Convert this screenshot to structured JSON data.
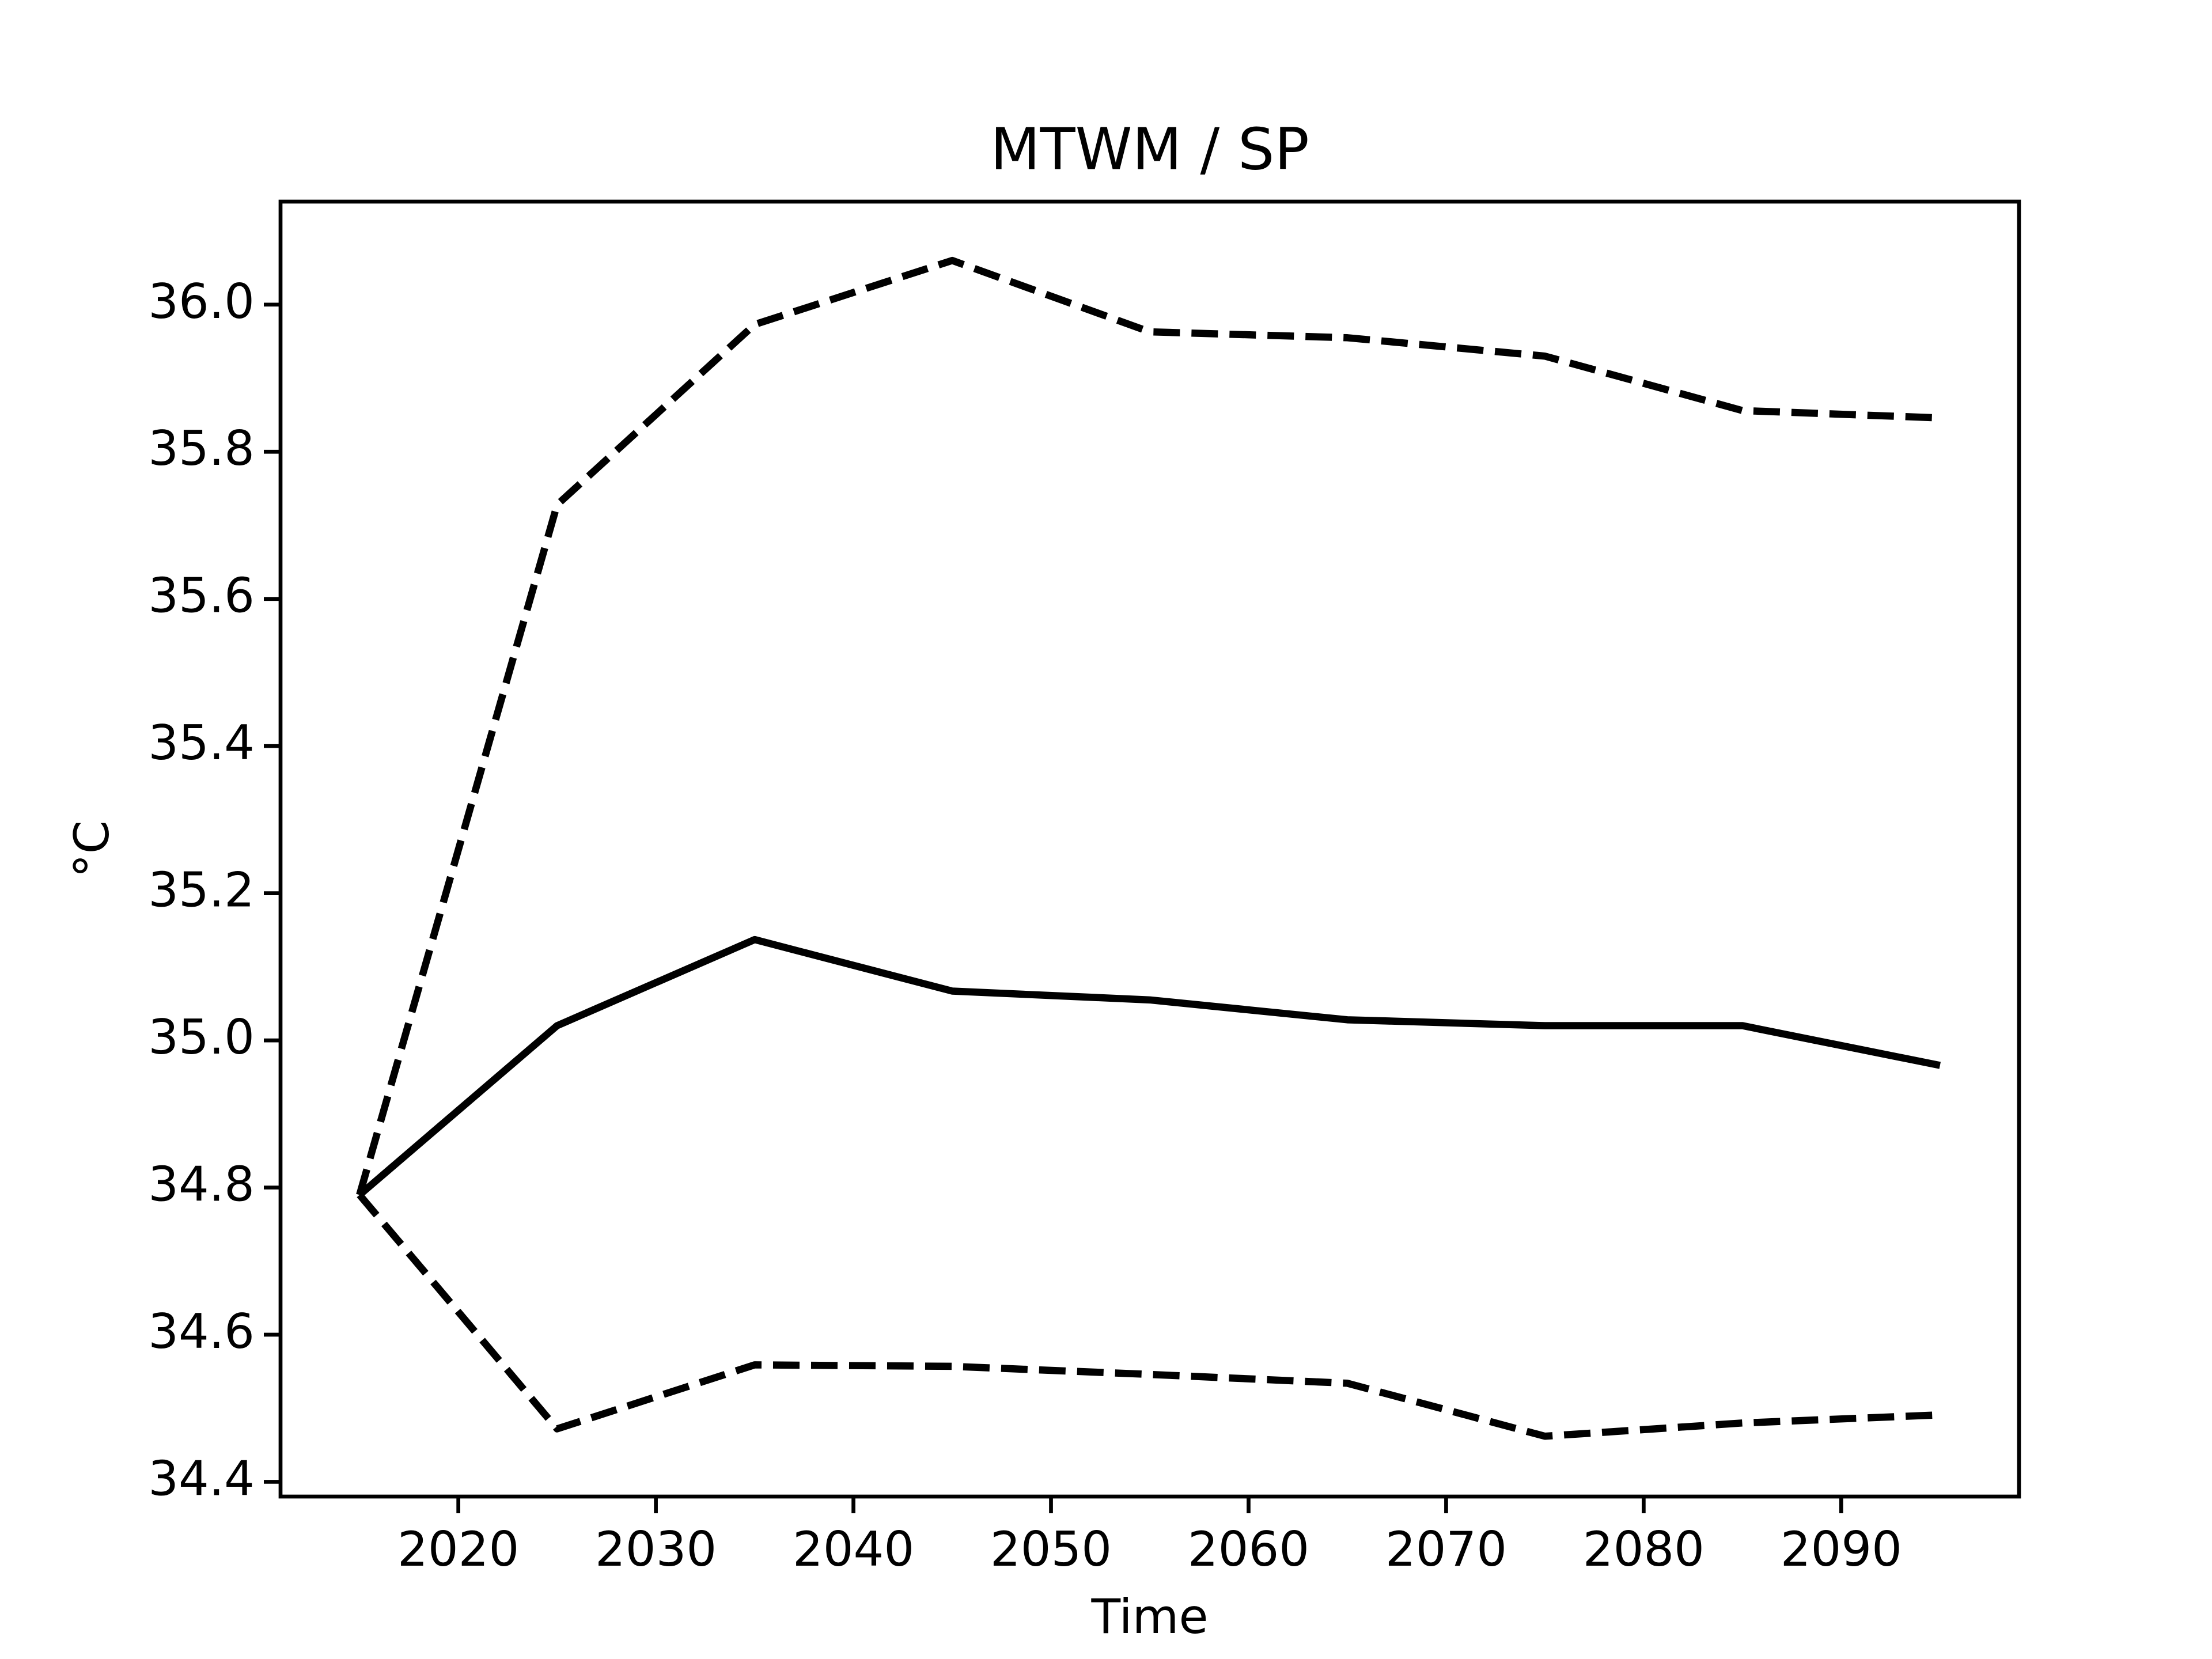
{
  "chart_data": {
    "type": "line",
    "title": "MTWM / SP",
    "x_label": "Time",
    "y_label": "°C",
    "x": [
      2015,
      2025,
      2035,
      2045,
      2055,
      2065,
      2075,
      2085,
      2095
    ],
    "series": [
      {
        "color": "#000000",
        "dashed": false,
        "values": [
          34.79,
          35.02,
          35.137,
          35.067,
          35.055,
          35.028,
          35.02,
          35.02,
          34.966
        ]
      },
      {
        "color": "#000000",
        "dashed": true,
        "values": [
          34.79,
          35.728,
          35.973,
          36.06,
          35.963,
          35.955,
          35.93,
          35.856,
          35.846
        ]
      },
      {
        "color": "#000000",
        "dashed": true,
        "values": [
          34.79,
          34.472,
          34.559,
          34.557,
          34.546,
          34.534,
          34.462,
          34.48,
          34.491
        ]
      }
    ],
    "xlim": [
      2011,
      2099
    ],
    "xticks": [
      2020,
      2030,
      2040,
      2050,
      2060,
      2070,
      2080,
      2090
    ],
    "ylim": [
      34.38,
      36.14
    ],
    "yticks": [
      34.4,
      34.6,
      34.8,
      {
        "value": 35.0,
        "label": "35.0"
      },
      35.2,
      35.4,
      35.6,
      35.8,
      {
        "value": 36.0,
        "label": "36.0"
      }
    ],
    "grid": false
  }
}
